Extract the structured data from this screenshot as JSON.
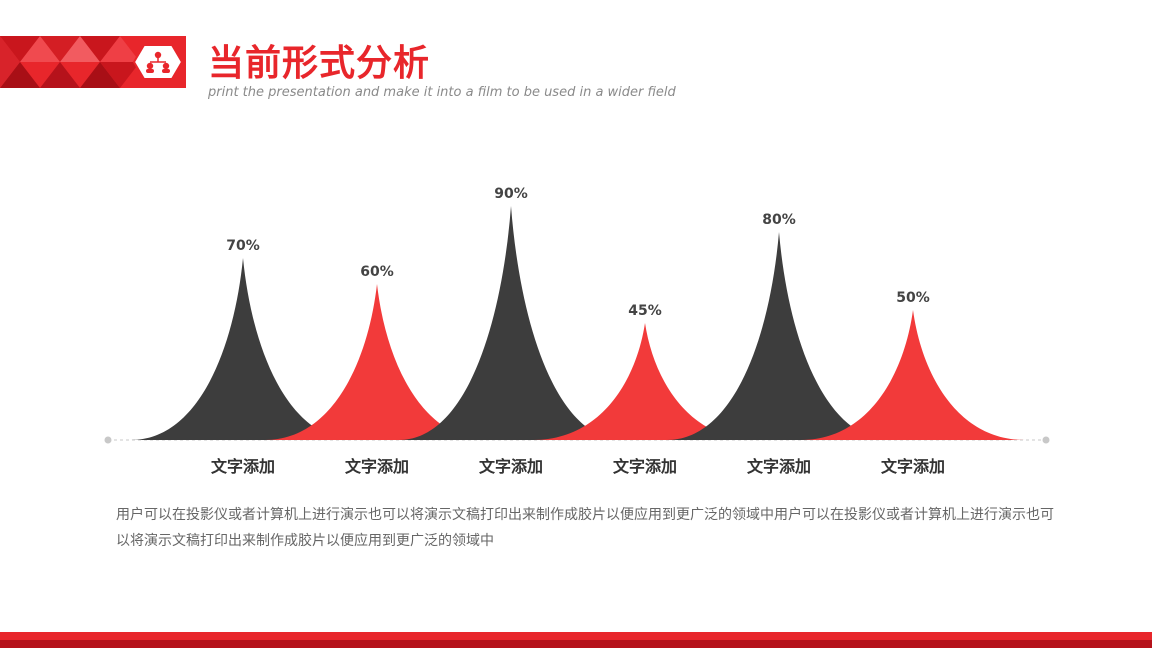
{
  "header": {
    "title": "当前形式分析",
    "subtitle": "print the presentation and make it into a film to be used in a wider field",
    "icon": "people-network-icon"
  },
  "colors": {
    "accent": "#e8262b",
    "accent_dark": "#b5121b",
    "peak_dark": "#3d3d3d",
    "peak_red": "#f23a3a",
    "text_gray": "#666666"
  },
  "chart_data": {
    "type": "area",
    "categories": [
      "文字添加",
      "文字添加",
      "文字添加",
      "文字添加",
      "文字添加",
      "文字添加"
    ],
    "values": [
      70,
      60,
      90,
      45,
      80,
      50
    ],
    "value_labels": [
      "70%",
      "60%",
      "90%",
      "45%",
      "80%",
      "50%"
    ],
    "ylim": [
      0,
      100
    ],
    "grid": false,
    "legend": "none",
    "title": "",
    "xlabel": "",
    "ylabel": ""
  },
  "description": "用户可以在投影仪或者计算机上进行演示也可以将演示文稿打印出来制作成胶片以便应用到更广泛的领域中用户可以在投影仪或者计算机上进行演示也可以将演示文稿打印出来制作成胶片以便应用到更广泛的领域中"
}
